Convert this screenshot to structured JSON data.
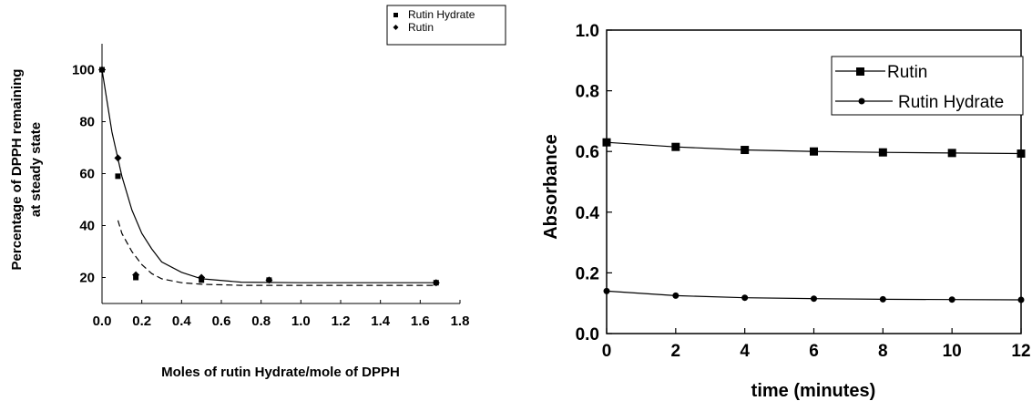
{
  "chart_data": [
    {
      "type": "scatter",
      "title": "",
      "xlabel": "Moles of rutin Hydrate/mole of DPPH",
      "ylabel": [
        "Percentage of DPPH remaining",
        "at steady state"
      ],
      "xlim": [
        0,
        1.8
      ],
      "ylim": [
        10,
        110
      ],
      "x_ticks": [
        "0.0",
        "0.2",
        "0.4",
        "0.6",
        "0.8",
        "1.0",
        "1.2",
        "1.4",
        "1.6",
        "1.8"
      ],
      "y_ticks": [
        "20",
        "40",
        "60",
        "80",
        "100"
      ],
      "legend": {
        "position": "top-right",
        "items": [
          "Rutin Hydrate",
          "Rutin"
        ]
      },
      "series": [
        {
          "name": "Rutin Hydrate",
          "marker": "square",
          "curve": "dashed",
          "x": [
            0.0,
            0.08,
            0.17,
            0.5,
            0.84,
            1.68
          ],
          "y": [
            100,
            59,
            20,
            19,
            19,
            18
          ]
        },
        {
          "name": "Rutin",
          "marker": "diamond",
          "curve": "solid",
          "x": [
            0.0,
            0.08,
            0.17,
            0.5,
            0.84,
            1.68
          ],
          "y": [
            100,
            66,
            21,
            20,
            19,
            18
          ]
        }
      ],
      "fits": [
        {
          "series": "Rutin",
          "style": "solid",
          "x": [
            0,
            0.05,
            0.1,
            0.15,
            0.2,
            0.25,
            0.3,
            0.4,
            0.5,
            0.7,
            1.0,
            1.4,
            1.68
          ],
          "y": [
            100,
            76,
            59,
            46,
            37,
            31,
            26,
            22,
            19.5,
            18.2,
            18,
            18,
            18
          ]
        },
        {
          "series": "Rutin Hydrate",
          "style": "dashed",
          "x": [
            0.08,
            0.1,
            0.15,
            0.2,
            0.25,
            0.3,
            0.4,
            0.5,
            0.7,
            1.0,
            1.4,
            1.68
          ],
          "y": [
            42,
            37,
            30,
            25,
            21.5,
            19.5,
            18,
            17.4,
            17,
            17,
            17,
            17
          ]
        }
      ]
    },
    {
      "type": "line",
      "title": "",
      "xlabel": "time (minutes)",
      "ylabel": "Absorbance",
      "xlim": [
        0,
        12
      ],
      "ylim": [
        0,
        1.0
      ],
      "x_ticks": [
        "0",
        "2",
        "4",
        "6",
        "8",
        "10",
        "12"
      ],
      "y_ticks": [
        "0.0",
        "0.2",
        "0.4",
        "0.6",
        "0.8",
        "1.0"
      ],
      "legend": {
        "position": "top-right",
        "items": [
          "Rutin",
          "Rutin Hydrate"
        ]
      },
      "x": [
        0,
        2,
        4,
        6,
        8,
        10,
        12
      ],
      "series": [
        {
          "name": "Rutin",
          "marker": "square",
          "values": [
            0.63,
            0.615,
            0.605,
            0.6,
            0.597,
            0.595,
            0.593
          ]
        },
        {
          "name": "Rutin Hydrate",
          "marker": "circle",
          "values": [
            0.14,
            0.125,
            0.118,
            0.115,
            0.113,
            0.112,
            0.111
          ]
        }
      ]
    }
  ]
}
